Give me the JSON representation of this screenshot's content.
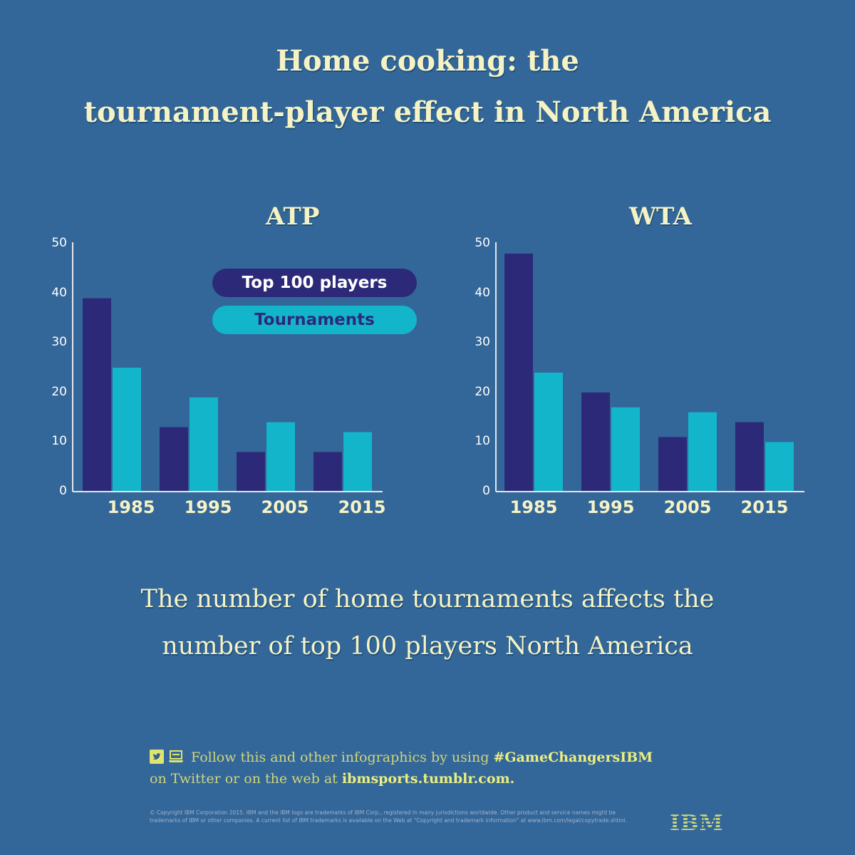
{
  "title": {
    "line1": "Home cooking: the",
    "line2": "tournament-player effect in North America"
  },
  "colors": {
    "background": "#336699",
    "top100_players": "#2c2a78",
    "tournaments": "#13b5cb",
    "title_text": "#f5f3c4",
    "footer_text": "#cfd67a"
  },
  "legend": {
    "top100": "Top 100 players",
    "tournaments": "Tournaments"
  },
  "subtitle": {
    "line1": "The number of home tournaments affects  the",
    "line2": "number of top 100 players  North America"
  },
  "footer": {
    "prefix": "Follow this and other infographics by using ",
    "hashtag": "#GameChangersIBM",
    "line2_prefix": "on Twitter or on the web at ",
    "url": "ibmsports.tumblr.com.",
    "icons": [
      "twitter-icon",
      "laptop-icon"
    ]
  },
  "legal": "© Copyright IBM Corporation 2015. IBM and the IBM logo are trademarks of IBM Corp., registered in many jurisdictions worldwide. Other product and service names might be trademarks of IBM or other companies. A current list of IBM trademarks is available on the Web at \"Copyright and trademark information\" at www.ibm.com/legal/copytrade.shtml.",
  "logo": "IBM",
  "chart_data": [
    {
      "type": "bar",
      "title": "ATP",
      "categories": [
        "1985",
        "1995",
        "2005",
        "2015"
      ],
      "series": [
        {
          "name": "Top 100 players",
          "values": [
            39,
            13,
            8,
            8
          ]
        },
        {
          "name": "Tournaments",
          "values": [
            25,
            19,
            14,
            12
          ]
        }
      ],
      "xlabel": "",
      "ylabel": "",
      "ylim": [
        0,
        50
      ],
      "yticks": [
        "0",
        "10",
        "20",
        "30",
        "40",
        "50"
      ],
      "grid": false,
      "legend_position": "top-right"
    },
    {
      "type": "bar",
      "title": "WTA",
      "categories": [
        "1985",
        "1995",
        "2005",
        "2015"
      ],
      "series": [
        {
          "name": "Top 100 players",
          "values": [
            48,
            20,
            11,
            14
          ]
        },
        {
          "name": "Tournaments",
          "values": [
            24,
            17,
            16,
            10
          ]
        }
      ],
      "xlabel": "",
      "ylabel": "",
      "ylim": [
        0,
        50
      ],
      "yticks": [
        "0",
        "10",
        "20",
        "30",
        "40",
        "50"
      ],
      "grid": false
    }
  ]
}
